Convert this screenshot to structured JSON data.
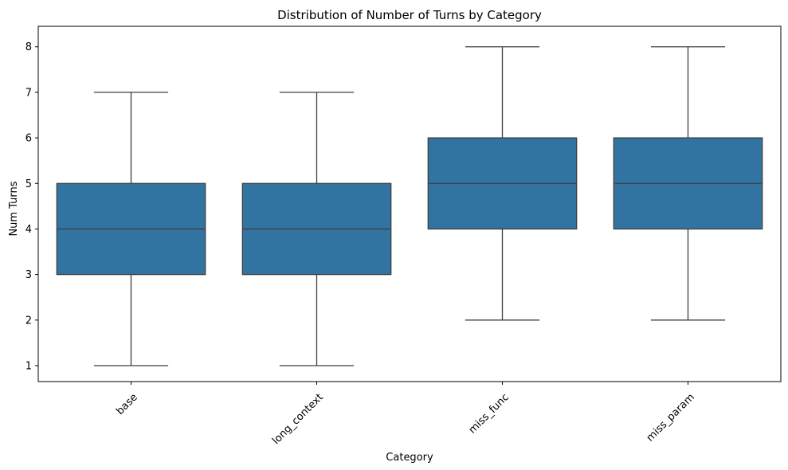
{
  "chart_data": {
    "type": "box",
    "title": "Distribution of Number of Turns by Category",
    "xlabel": "Category",
    "ylabel": "Num Turns",
    "ylim": [
      0.65,
      8.45
    ],
    "yticks": [
      1,
      2,
      3,
      4,
      5,
      6,
      7,
      8
    ],
    "grid": false,
    "legend": "none",
    "categories": [
      "base",
      "long_context",
      "miss_func",
      "miss_param"
    ],
    "boxes": [
      {
        "category": "base",
        "min": 1,
        "q1": 3,
        "median": 4,
        "q3": 5,
        "max": 7
      },
      {
        "category": "long_context",
        "min": 1,
        "q1": 3,
        "median": 4,
        "q3": 5,
        "max": 7
      },
      {
        "category": "miss_func",
        "min": 2,
        "q1": 4,
        "median": 5,
        "q3": 6,
        "max": 8
      },
      {
        "category": "miss_param",
        "min": 2,
        "q1": 4,
        "median": 5,
        "q3": 6,
        "max": 8
      }
    ],
    "colors": {
      "box_fill": "#3274a1",
      "line": "#3f3f3f",
      "frame": "#000000"
    }
  }
}
